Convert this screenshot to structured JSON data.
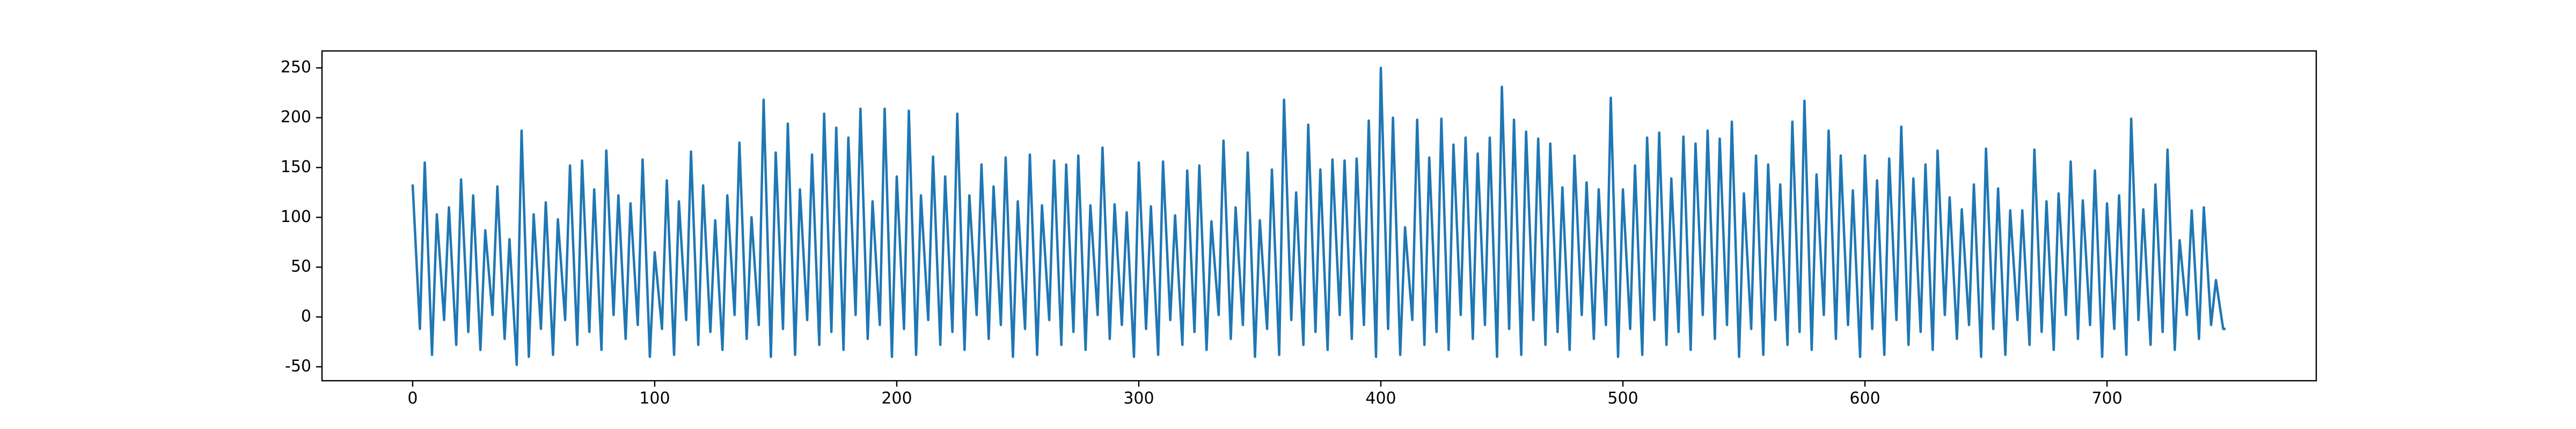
{
  "chart_data": {
    "type": "line",
    "color": "#1f77b4",
    "x": [
      0,
      3,
      5,
      8,
      10,
      13,
      15,
      18,
      20,
      23,
      25,
      28,
      30,
      33,
      35,
      38,
      40,
      43,
      45,
      48,
      50,
      53,
      55,
      58,
      60,
      63,
      65,
      68,
      70,
      73,
      75,
      78,
      80,
      83,
      85,
      88,
      90,
      93,
      95,
      98,
      100,
      103,
      105,
      108,
      110,
      113,
      115,
      118,
      120,
      123,
      125,
      128,
      130,
      133,
      135,
      138,
      140,
      143,
      145,
      148,
      150,
      153,
      155,
      158,
      160,
      163,
      165,
      168,
      170,
      173,
      175,
      178,
      180,
      183,
      185,
      188,
      190,
      193,
      195,
      198,
      200,
      203,
      205,
      208,
      210,
      213,
      215,
      218,
      220,
      223,
      225,
      228,
      230,
      233,
      235,
      238,
      240,
      243,
      245,
      248,
      250,
      253,
      255,
      258,
      260,
      263,
      265,
      268,
      270,
      273,
      275,
      278,
      280,
      283,
      285,
      288,
      290,
      293,
      295,
      298,
      300,
      303,
      305,
      308,
      310,
      313,
      315,
      318,
      320,
      323,
      325,
      328,
      330,
      333,
      335,
      338,
      340,
      343,
      345,
      348,
      350,
      353,
      355,
      358,
      360,
      363,
      365,
      368,
      370,
      373,
      375,
      378,
      380,
      383,
      385,
      388,
      390,
      393,
      395,
      398,
      400,
      403,
      405,
      408,
      410,
      413,
      415,
      418,
      420,
      423,
      425,
      428,
      430,
      433,
      435,
      438,
      440,
      443,
      445,
      448,
      450,
      453,
      455,
      458,
      460,
      463,
      465,
      468,
      470,
      473,
      475,
      478,
      480,
      483,
      485,
      488,
      490,
      493,
      495,
      498,
      500,
      503,
      505,
      508,
      510,
      513,
      515,
      518,
      520,
      523,
      525,
      528,
      530,
      533,
      535,
      538,
      540,
      543,
      545,
      548,
      550,
      553,
      555,
      558,
      560,
      563,
      565,
      568,
      570,
      573,
      575,
      578,
      580,
      583,
      585,
      588,
      590,
      593,
      595,
      598,
      600,
      603,
      605,
      608,
      610,
      613,
      615,
      618,
      620,
      623,
      625,
      628,
      630,
      633,
      635,
      638,
      640,
      643,
      645,
      648,
      650,
      653,
      655,
      658,
      660,
      663,
      665,
      668,
      670,
      673,
      675,
      678,
      680,
      683,
      685,
      688,
      690,
      693,
      695,
      698,
      700,
      703,
      705,
      708,
      710,
      713,
      715,
      718,
      720,
      723,
      725,
      728,
      730,
      733,
      735,
      738,
      740,
      743,
      745,
      748,
      749
    ],
    "values": [
      133,
      -12,
      155,
      -38,
      103,
      -3,
      110,
      -28,
      138,
      -15,
      122,
      -33,
      87,
      2,
      131,
      -22,
      78,
      -48,
      187,
      -40,
      103,
      -12,
      115,
      -38,
      98,
      -3,
      152,
      -28,
      157,
      -15,
      128,
      -33,
      167,
      2,
      122,
      -22,
      114,
      -8,
      158,
      -40,
      65,
      -12,
      137,
      -38,
      116,
      -3,
      166,
      -28,
      132,
      -15,
      97,
      -33,
      122,
      2,
      175,
      -22,
      100,
      -8,
      218,
      -40,
      165,
      -12,
      194,
      -38,
      128,
      -3,
      163,
      -28,
      204,
      -15,
      190,
      -33,
      180,
      2,
      209,
      -22,
      116,
      -8,
      209,
      -40,
      141,
      -12,
      207,
      -38,
      122,
      -3,
      161,
      -28,
      141,
      -15,
      204,
      -33,
      122,
      2,
      153,
      -22,
      131,
      -8,
      160,
      -40,
      116,
      -12,
      163,
      -38,
      112,
      -3,
      157,
      -28,
      153,
      -15,
      162,
      -33,
      112,
      2,
      170,
      -22,
      113,
      -8,
      105,
      -40,
      155,
      -12,
      111,
      -38,
      156,
      -3,
      102,
      -28,
      147,
      -15,
      152,
      -33,
      96,
      2,
      177,
      -22,
      110,
      -8,
      165,
      -40,
      97,
      -12,
      148,
      -38,
      218,
      -3,
      125,
      -28,
      193,
      -15,
      148,
      -33,
      158,
      2,
      157,
      -22,
      159,
      -8,
      197,
      -40,
      250,
      -12,
      200,
      -38,
      90,
      -3,
      198,
      -28,
      160,
      -15,
      199,
      -33,
      173,
      2,
      180,
      -22,
      164,
      -8,
      180,
      -40,
      231,
      -12,
      198,
      -38,
      186,
      -3,
      179,
      -28,
      174,
      -15,
      130,
      -33,
      162,
      2,
      135,
      -22,
      128,
      -8,
      220,
      -40,
      128,
      -12,
      152,
      -38,
      180,
      -3,
      185,
      -28,
      139,
      -15,
      181,
      -33,
      174,
      2,
      187,
      -22,
      179,
      -8,
      196,
      -40,
      124,
      -12,
      162,
      -38,
      153,
      -3,
      133,
      -28,
      196,
      -15,
      217,
      -33,
      143,
      2,
      187,
      -22,
      162,
      -8,
      127,
      -40,
      162,
      -12,
      137,
      -38,
      159,
      -3,
      191,
      -28,
      139,
      -15,
      153,
      -33,
      167,
      2,
      120,
      -22,
      108,
      -8,
      133,
      -40,
      169,
      -12,
      129,
      -38,
      107,
      -3,
      107,
      -28,
      168,
      -15,
      116,
      -33,
      124,
      2,
      156,
      -22,
      117,
      -8,
      147,
      -40,
      114,
      -12,
      122,
      -38,
      199,
      -3,
      108,
      -28,
      133,
      -15,
      168,
      -33,
      77,
      2,
      107,
      -22,
      110,
      -8,
      37,
      -12,
      -12
    ],
    "xlim": [
      -37.45,
      786.45
    ],
    "xticks": [
      0,
      100,
      200,
      300,
      400,
      500,
      600,
      700
    ],
    "ylim": [
      -64,
      267
    ],
    "yticks": [
      -50,
      0,
      50,
      100,
      150,
      200,
      250
    ]
  }
}
